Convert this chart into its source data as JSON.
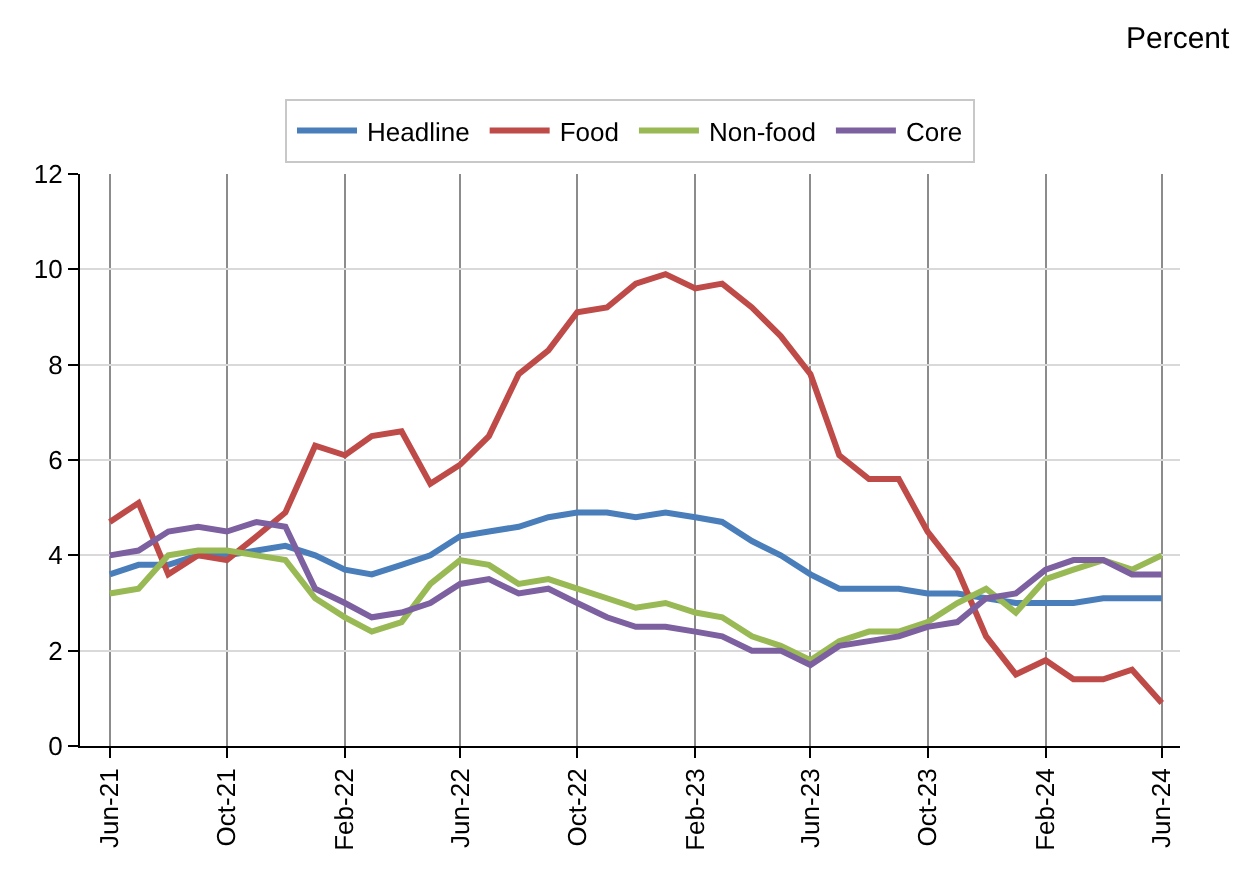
{
  "chart_data": {
    "type": "line",
    "ylabel": "Percent",
    "x": [
      "2021-06",
      "2021-07",
      "2021-08",
      "2021-09",
      "2021-10",
      "2021-11",
      "2021-12",
      "2022-01",
      "2022-02",
      "2022-03",
      "2022-04",
      "2022-05",
      "2022-06",
      "2022-07",
      "2022-08",
      "2022-09",
      "2022-10",
      "2022-11",
      "2022-12",
      "2023-01",
      "2023-02",
      "2023-03",
      "2023-04",
      "2023-05",
      "2023-06",
      "2023-07",
      "2023-08",
      "2023-09",
      "2023-10",
      "2023-11",
      "2023-12",
      "2024-01",
      "2024-02",
      "2024-03",
      "2024-04",
      "2024-05",
      "2024-06"
    ],
    "series": [
      {
        "name": "Headline",
        "color": "#4a7ebb",
        "values": [
          3.6,
          3.8,
          3.8,
          4.0,
          4.0,
          4.1,
          4.2,
          4.0,
          3.7,
          3.6,
          3.8,
          4.0,
          4.4,
          4.5,
          4.6,
          4.8,
          4.9,
          4.9,
          4.8,
          4.9,
          4.8,
          4.7,
          4.3,
          4.0,
          3.6,
          3.3,
          3.3,
          3.3,
          3.2,
          3.2,
          3.1,
          3.0,
          3.0,
          3.0,
          3.1,
          3.1,
          3.1
        ]
      },
      {
        "name": "Food",
        "color": "#be4b48",
        "values": [
          4.7,
          5.1,
          3.6,
          4.0,
          3.9,
          4.4,
          4.9,
          6.3,
          6.1,
          6.5,
          6.6,
          5.5,
          5.9,
          6.5,
          7.8,
          8.3,
          9.1,
          9.2,
          9.7,
          9.9,
          9.6,
          9.7,
          9.2,
          8.6,
          7.8,
          6.1,
          5.6,
          5.6,
          4.5,
          3.7,
          2.3,
          1.5,
          1.8,
          1.4,
          1.4,
          1.6,
          0.9
        ]
      },
      {
        "name": "Non-food",
        "color": "#98b954",
        "values": [
          3.2,
          3.3,
          4.0,
          4.1,
          4.1,
          4.0,
          3.9,
          3.1,
          2.7,
          2.4,
          2.6,
          3.4,
          3.9,
          3.8,
          3.4,
          3.5,
          3.3,
          3.1,
          2.9,
          3.0,
          2.8,
          2.7,
          2.3,
          2.1,
          1.8,
          2.2,
          2.4,
          2.4,
          2.6,
          3.0,
          3.3,
          2.8,
          3.5,
          3.7,
          3.9,
          3.7,
          4.0
        ]
      },
      {
        "name": "Core",
        "color": "#7d60a0",
        "values": [
          4.0,
          4.1,
          4.5,
          4.6,
          4.5,
          4.7,
          4.6,
          3.3,
          3.0,
          2.7,
          2.8,
          3.0,
          3.4,
          3.5,
          3.2,
          3.3,
          3.0,
          2.7,
          2.5,
          2.5,
          2.4,
          2.3,
          2.0,
          2.0,
          1.7,
          2.1,
          2.2,
          2.3,
          2.5,
          2.6,
          3.1,
          3.2,
          3.7,
          3.9,
          3.9,
          3.6,
          3.6
        ]
      }
    ],
    "xlim": [
      "2021-05",
      "2024-06-20"
    ],
    "xticks": [
      {
        "value": "2021-06",
        "label": "Jun-21"
      },
      {
        "value": "2021-10",
        "label": "Oct-21"
      },
      {
        "value": "2022-02",
        "label": "Feb-22"
      },
      {
        "value": "2022-06",
        "label": "Jun-22"
      },
      {
        "value": "2022-10",
        "label": "Oct-22"
      },
      {
        "value": "2023-02",
        "label": "Feb-23"
      },
      {
        "value": "2023-06",
        "label": "Jun-23"
      },
      {
        "value": "2023-10",
        "label": "Oct-23"
      },
      {
        "value": "2024-02",
        "label": "Feb-24"
      },
      {
        "value": "2024-06",
        "label": "Jun-24"
      }
    ],
    "ylim": [
      0,
      12
    ],
    "yticks": [
      0,
      2,
      4,
      6,
      8,
      10,
      12
    ],
    "grid": true,
    "legend": "top",
    "marker": "none",
    "line_style": "solid"
  }
}
